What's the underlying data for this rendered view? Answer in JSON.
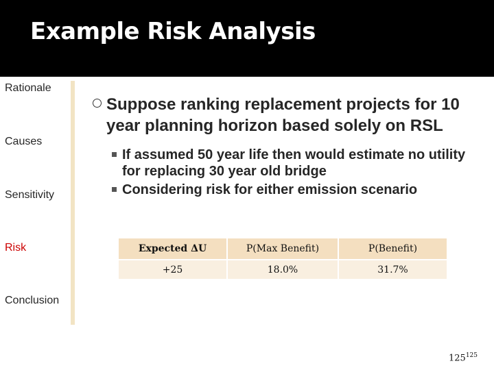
{
  "slide": {
    "title": "Example Risk Analysis",
    "page_number": "125",
    "page_number_sup": "125"
  },
  "sidebar": {
    "items": [
      {
        "label": "Rationale",
        "active": false
      },
      {
        "label": "Causes",
        "active": false
      },
      {
        "label": "Sensitivity",
        "active": false
      },
      {
        "label": "Risk",
        "active": true
      },
      {
        "label": "Conclusion",
        "active": false
      }
    ]
  },
  "content": {
    "bullet": "Suppose ranking replacement projects for 10 year planning horizon based solely on RSL",
    "sub_bullets": [
      "If assumed 50 year life then would estimate no utility for replacing 30 year old bridge",
      "Considering risk for either emission scenario"
    ]
  },
  "table": {
    "headers": [
      "Expected ΔU",
      "P(Max Benefit)",
      "P(Benefit)"
    ],
    "rows": [
      [
        "+25",
        "18.0%",
        "31.7%"
      ]
    ]
  },
  "colors": {
    "title_bar": "#000000",
    "active_nav": "#cc0000",
    "header_cell": "#f4dfc0",
    "body_cell": "#f9efe0",
    "divider": "#f2e4c4"
  }
}
